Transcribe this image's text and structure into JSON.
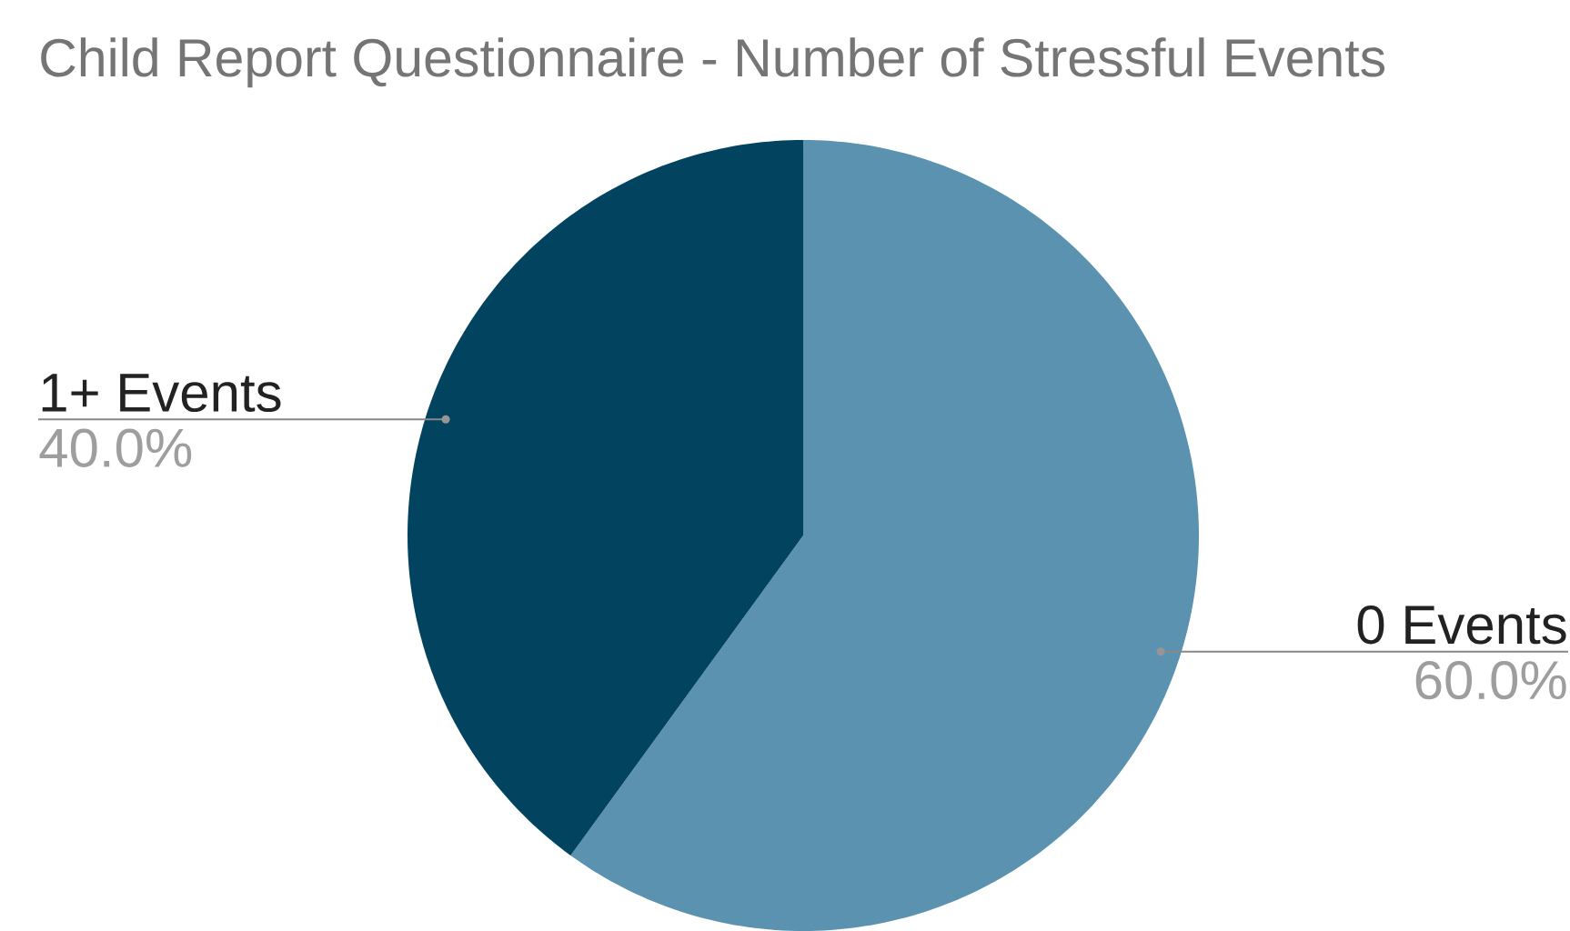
{
  "chart_data": {
    "type": "pie",
    "title": "Child Report Questionnaire - Number of Stressful Events",
    "categories": [
      "0 Events",
      "1+ Events"
    ],
    "values": [
      60.0,
      40.0
    ],
    "colors": [
      "#5b92b0",
      "#02445f"
    ],
    "value_labels": [
      "60.0%",
      "40.0%"
    ]
  }
}
